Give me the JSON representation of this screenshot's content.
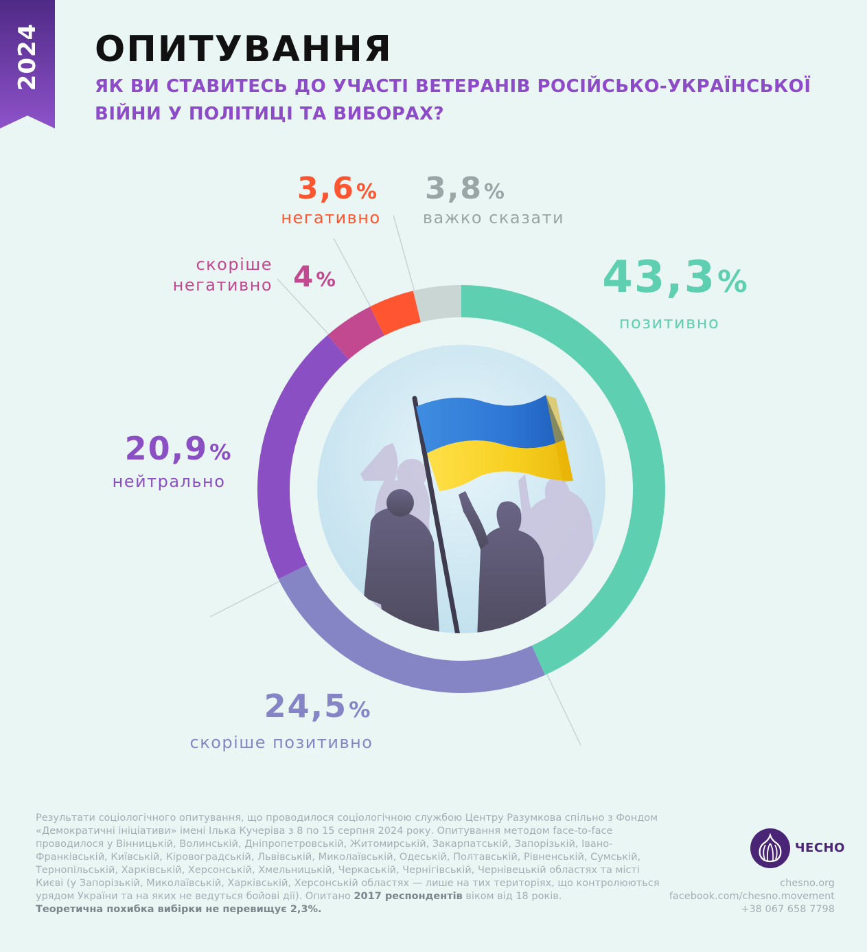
{
  "ribbon": {
    "year": "2024"
  },
  "header": {
    "title": "ОПИТУВАННЯ",
    "subtitle": "ЯК ВИ СТАВИТЕСЬ ДО УЧАСТІ ВЕТЕРАНІВ РОСІЙСЬКО-УКРАЇНСЬКОЇ ВІЙНИ У ПОЛІТИЦІ ТА ВИБОРАХ?"
  },
  "chart_data": {
    "type": "pie",
    "style": "donut",
    "unit": "%",
    "slices": [
      {
        "label": "позитивно",
        "value": 43.3,
        "value_text": "43,3",
        "color": "#5fcfb1"
      },
      {
        "label": "скоріше позитивно",
        "value": 24.5,
        "value_text": "24,5",
        "color": "#8585c6"
      },
      {
        "label": "нейтрально",
        "value": 20.9,
        "value_text": "20,9",
        "color": "#8b4fc4"
      },
      {
        "label": "скоріше негативно",
        "value": 4.0,
        "value_text": "4",
        "color": "#c2488f"
      },
      {
        "label": "негативно",
        "value": 3.6,
        "value_text": "3,6",
        "color": "#ff5530"
      },
      {
        "label": "важко сказати",
        "value": 3.8,
        "value_text": "3,8",
        "color": "#c9d6d4"
      }
    ],
    "center_image": "ukrainian-flag-with-crowd-silhouettes"
  },
  "footer": {
    "text": "Результати соціологічного опитування, що проводилося  соціологічною службою Центру Разумкова спільно з Фондом «Демократичні ініціативи» імені Ілька Кучеріва з 8 по 15 серпня 2024 року. Опитування методом face-to-face проводилося у Вінницькій, Волинській, Дніпропетровській, Житомирській, Закарпатській, Запорізькій, Івано-Франківській, Київській, Кіровоградській, Львівській, Миколаївській, Одеській, Полтавській, Рівненській, Сумській, Тернопільській, Харківській, Херсонській, Хмельницькій, Черкаській, Чернігівській, Чернівецькій областях та місті Києві (у Запорізькій, Миколаївській, Харківській, Херсонській областях — лише на тих територіях, що контролюються урядом України та на яких не ведуться бойові дії).  Опитано",
    "respondents": "2017 респондентів",
    "age_text": "віком від 18 років.",
    "error_note": "Теоретична похибка вибірки не перевищує 2,3%."
  },
  "brand": {
    "logo_icon": "garlic-icon",
    "name": "ЧЕСНО",
    "website": "chesno.org",
    "facebook": "facebook.com/chesno.movement",
    "phone": "+38 067 658 7798"
  }
}
